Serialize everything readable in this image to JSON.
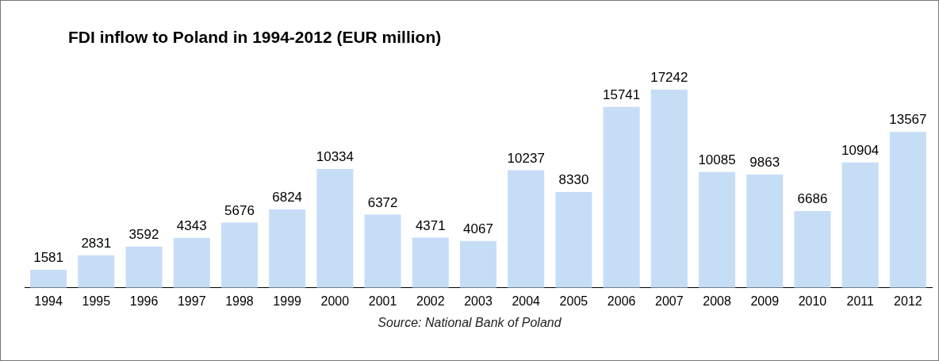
{
  "chart_data": {
    "type": "bar",
    "title": "FDI inflow to Poland in 1994-2012 (EUR million)",
    "categories": [
      "1994",
      "1995",
      "1996",
      "1997",
      "1998",
      "1999",
      "2000",
      "2001",
      "2002",
      "2003",
      "2004",
      "2005",
      "2006",
      "2007",
      "2008",
      "2009",
      "2010",
      "2011",
      "2012"
    ],
    "values": [
      1581,
      2831,
      3592,
      4343,
      5676,
      6824,
      10334,
      6372,
      4371,
      4067,
      10237,
      8330,
      15741,
      17242,
      10085,
      9863,
      6686,
      10904,
      13567
    ],
    "color": "#c6ddf6",
    "data_labels": true,
    "grid": false,
    "legend": false,
    "annotations": [
      "Source: National Bank of Poland"
    ]
  }
}
